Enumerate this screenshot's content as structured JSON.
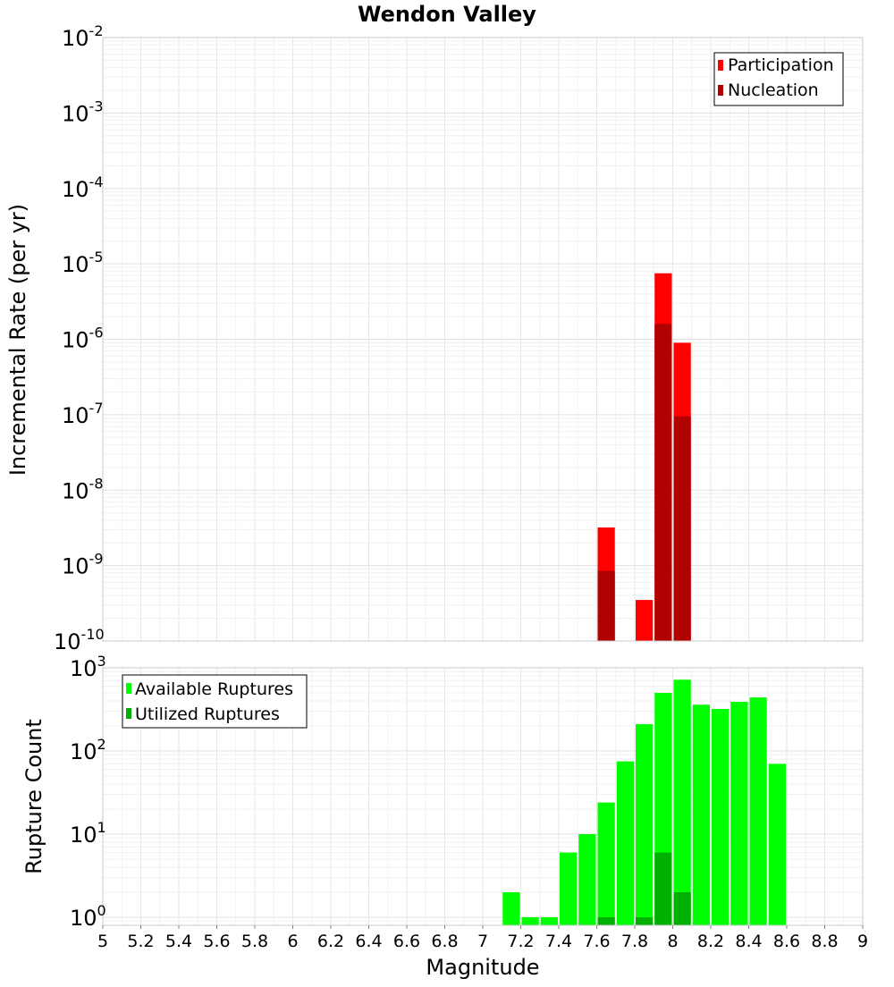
{
  "chart_data": [
    {
      "type": "bar",
      "title": "Wendon Valley",
      "xlabel": "",
      "ylabel": "Incremental Rate (per yr)",
      "yscale": "log",
      "xlim": [
        5,
        9
      ],
      "ylim": [
        1e-10,
        0.01
      ],
      "ytick_exponents": [
        -10,
        -9,
        -8,
        -7,
        -6,
        -5,
        -4,
        -3,
        -2
      ],
      "bin_width": 0.1,
      "legend_position": "top-right",
      "series": [
        {
          "name": "Participation",
          "color": "#ff0000",
          "x": [
            7.65,
            7.85,
            7.95,
            8.05
          ],
          "values": [
            3.2e-09,
            3.5e-10,
            7.5e-06,
            9e-07
          ]
        },
        {
          "name": "Nucleation",
          "color": "#b00000",
          "x": [
            7.65,
            7.95,
            8.05
          ],
          "values": [
            8.5e-10,
            1.6e-06,
            9.5e-08
          ]
        }
      ]
    },
    {
      "type": "bar",
      "title": "",
      "xlabel": "Magnitude",
      "ylabel": "Rupture Count",
      "yscale": "log",
      "xlim": [
        5,
        9
      ],
      "ylim": [
        0.8,
        1000
      ],
      "ytick_exponents": [
        0,
        1,
        2,
        3
      ],
      "bin_width": 0.1,
      "legend_position": "top-left",
      "xticks": [
        "5",
        "5.2",
        "5.4",
        "5.6",
        "5.8",
        "6",
        "6.2",
        "6.4",
        "6.6",
        "6.8",
        "7",
        "7.2",
        "7.4",
        "7.6",
        "7.8",
        "8",
        "8.2",
        "8.4",
        "8.6",
        "8.8",
        "9"
      ],
      "series": [
        {
          "name": "Available Ruptures",
          "color": "#00ff00",
          "x": [
            7.15,
            7.25,
            7.35,
            7.45,
            7.55,
            7.65,
            7.75,
            7.85,
            7.95,
            8.05,
            8.15,
            8.25,
            8.35,
            8.45,
            8.55
          ],
          "values": [
            2,
            1,
            1,
            6,
            10,
            24,
            75,
            210,
            500,
            720,
            360,
            320,
            390,
            440,
            70
          ]
        },
        {
          "name": "Utilized Ruptures",
          "color": "#00b000",
          "x": [
            7.65,
            7.85,
            7.95,
            8.05
          ],
          "values": [
            1,
            1,
            6,
            2
          ]
        }
      ]
    }
  ]
}
